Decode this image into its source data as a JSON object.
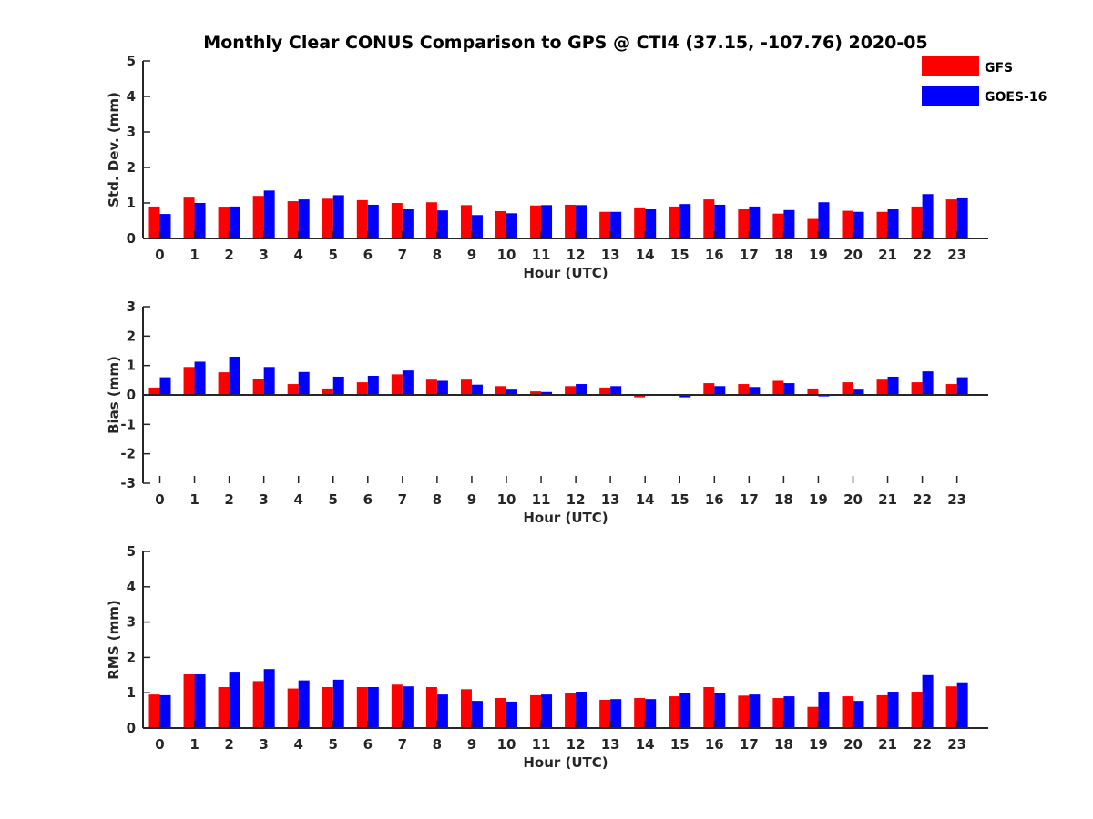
{
  "title": "Monthly Clear CONUS Comparison to GPS @ CTI4 (37.15, -107.76) 2020-05",
  "colors": {
    "GFS": "#ff0000",
    "GOES-16": "#0000ff"
  },
  "chart_data": [
    {
      "type": "bar",
      "ylabel": "Std. Dev. (mm)",
      "xlabel": "Hour (UTC)",
      "ylim": [
        0,
        5
      ],
      "yticks": [
        0,
        1,
        2,
        3,
        4,
        5
      ],
      "legend": "top-right",
      "categories": [
        "0",
        "1",
        "2",
        "3",
        "4",
        "5",
        "6",
        "7",
        "8",
        "9",
        "10",
        "11",
        "12",
        "13",
        "14",
        "15",
        "16",
        "17",
        "18",
        "19",
        "20",
        "21",
        "22",
        "23"
      ],
      "series": [
        {
          "name": "GFS",
          "values": [
            0.9,
            1.15,
            0.87,
            1.2,
            1.05,
            1.12,
            1.08,
            1.0,
            1.02,
            0.94,
            0.77,
            0.93,
            0.95,
            0.75,
            0.85,
            0.9,
            1.1,
            0.82,
            0.7,
            0.55,
            0.78,
            0.75,
            0.9,
            1.1
          ]
        },
        {
          "name": "GOES-16",
          "values": [
            0.69,
            1.0,
            0.9,
            1.35,
            1.1,
            1.22,
            0.95,
            0.82,
            0.79,
            0.66,
            0.71,
            0.94,
            0.94,
            0.75,
            0.82,
            0.97,
            0.95,
            0.9,
            0.8,
            1.02,
            0.75,
            0.82,
            1.25,
            1.13
          ]
        }
      ]
    },
    {
      "type": "bar",
      "ylabel": "Bias (mm)",
      "xlabel": "Hour (UTC)",
      "ylim": [
        -3,
        3
      ],
      "yticks": [
        -3,
        -2,
        -1,
        0,
        1,
        2,
        3
      ],
      "categories": [
        "0",
        "1",
        "2",
        "3",
        "4",
        "5",
        "6",
        "7",
        "8",
        "9",
        "10",
        "11",
        "12",
        "13",
        "14",
        "15",
        "16",
        "17",
        "18",
        "19",
        "20",
        "21",
        "22",
        "23"
      ],
      "series": [
        {
          "name": "GFS",
          "values": [
            0.25,
            0.95,
            0.77,
            0.55,
            0.37,
            0.22,
            0.43,
            0.7,
            0.52,
            0.52,
            0.3,
            0.12,
            0.3,
            0.25,
            -0.08,
            0.0,
            0.4,
            0.37,
            0.48,
            0.22,
            0.43,
            0.52,
            0.43,
            0.37
          ]
        },
        {
          "name": "GOES-16",
          "values": [
            0.6,
            1.13,
            1.3,
            0.95,
            0.78,
            0.62,
            0.65,
            0.83,
            0.48,
            0.35,
            0.18,
            0.1,
            0.37,
            0.3,
            0.0,
            -0.08,
            0.3,
            0.27,
            0.4,
            -0.05,
            0.18,
            0.62,
            0.8,
            0.6
          ]
        }
      ]
    },
    {
      "type": "bar",
      "ylabel": "RMS (mm)",
      "xlabel": "Hour (UTC)",
      "ylim": [
        0,
        5
      ],
      "yticks": [
        0,
        1,
        2,
        3,
        4,
        5
      ],
      "categories": [
        "0",
        "1",
        "2",
        "3",
        "4",
        "5",
        "6",
        "7",
        "8",
        "9",
        "10",
        "11",
        "12",
        "13",
        "14",
        "15",
        "16",
        "17",
        "18",
        "19",
        "20",
        "21",
        "22",
        "23"
      ],
      "series": [
        {
          "name": "GFS",
          "values": [
            0.95,
            1.52,
            1.16,
            1.33,
            1.12,
            1.16,
            1.16,
            1.23,
            1.16,
            1.1,
            0.85,
            0.93,
            1.0,
            0.8,
            0.85,
            0.9,
            1.16,
            0.92,
            0.85,
            0.6,
            0.9,
            0.93,
            1.03,
            1.18
          ]
        },
        {
          "name": "GOES-16",
          "values": [
            0.93,
            1.52,
            1.57,
            1.67,
            1.35,
            1.37,
            1.16,
            1.18,
            0.95,
            0.77,
            0.75,
            0.95,
            1.03,
            0.82,
            0.82,
            1.0,
            1.0,
            0.95,
            0.9,
            1.03,
            0.77,
            1.03,
            1.5,
            1.27
          ]
        }
      ]
    }
  ]
}
